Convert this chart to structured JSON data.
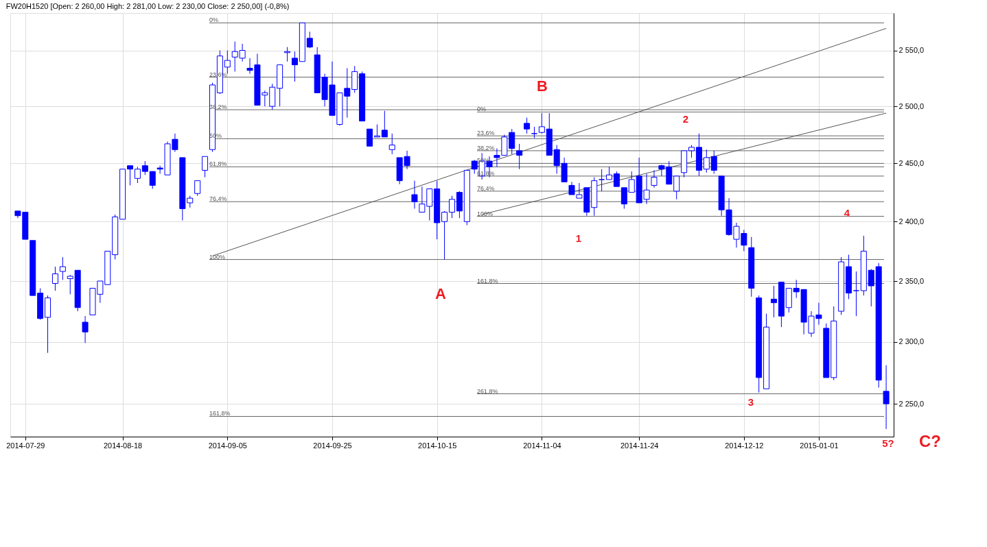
{
  "chart_data": {
    "type": "candlestick",
    "title": "FW20H1520 [Open: 2 260,00  High: 2 281,00  Low: 2 230,00  Close: 2 250,00] (-0,8%)",
    "categories": [
      null,
      "2014-07-29",
      null,
      null,
      null,
      null,
      null,
      null,
      null,
      null,
      null,
      null,
      null,
      null,
      "2014-08-18",
      null,
      null,
      null,
      null,
      null,
      null,
      null,
      null,
      null,
      null,
      null,
      null,
      null,
      "2014-09-05",
      null,
      null,
      null,
      null,
      null,
      null,
      null,
      null,
      null,
      null,
      null,
      null,
      null,
      "2014-09-25",
      null,
      null,
      null,
      null,
      null,
      null,
      null,
      null,
      null,
      null,
      null,
      null,
      null,
      "2014-10-15",
      null,
      null,
      null,
      null,
      null,
      null,
      null,
      null,
      null,
      null,
      null,
      null,
      null,
      "2014-11-04",
      null,
      null,
      null,
      null,
      null,
      null,
      null,
      null,
      null,
      null,
      null,
      null,
      "2014-11-24",
      null,
      null,
      null,
      null,
      null,
      null,
      null,
      null,
      null,
      null,
      null,
      null,
      null,
      "2014-12-12",
      null,
      null,
      null,
      null,
      null,
      null,
      null,
      null,
      null,
      "2015-01-01",
      null,
      null,
      null,
      null,
      null,
      null,
      null,
      null,
      null
    ],
    "ohlc": [
      [
        2409,
        2409,
        2403,
        2405
      ],
      [
        2408,
        2408,
        2385,
        2385
      ],
      [
        2384,
        2384,
        2338,
        2338
      ],
      [
        2340,
        2344,
        2318,
        2319
      ],
      [
        2320,
        2338,
        2291,
        2336
      ],
      [
        2348,
        2362,
        2342,
        2356
      ],
      [
        2358,
        2370,
        2351,
        2362
      ],
      [
        2352,
        2355,
        2339,
        2354
      ],
      [
        2359,
        2359,
        2325,
        2328
      ],
      [
        2316,
        2321,
        2299,
        2308
      ],
      [
        2322,
        2344,
        2322,
        2344
      ],
      [
        2339,
        2350,
        2332,
        2350
      ],
      [
        2347,
        2375,
        2347,
        2375
      ],
      [
        2372,
        2406,
        2368,
        2404
      ],
      [
        2402,
        2445,
        2402,
        2445
      ],
      [
        2448,
        2448,
        2431,
        2445
      ],
      [
        2437,
        2447,
        2433,
        2445
      ],
      [
        2448,
        2452,
        2440,
        2443
      ],
      [
        2443,
        2443,
        2428,
        2431
      ],
      [
        2446,
        2448,
        2441,
        2445
      ],
      [
        2440,
        2469,
        2440,
        2467
      ],
      [
        2471,
        2476,
        2460,
        2462
      ],
      [
        2455,
        2455,
        2401,
        2411
      ],
      [
        2416,
        2422,
        2412,
        2420
      ],
      [
        2424,
        2435,
        2422,
        2435
      ],
      [
        2444,
        2456,
        2438,
        2456
      ],
      [
        2462,
        2521,
        2460,
        2519
      ],
      [
        2512,
        2550,
        2511,
        2545
      ],
      [
        2535,
        2550,
        2529,
        2541
      ],
      [
        2544,
        2558,
        2531,
        2549
      ],
      [
        2543,
        2556,
        2540,
        2550
      ],
      [
        2534,
        2543,
        2529,
        2532
      ],
      [
        2537,
        2547,
        2501,
        2501
      ],
      [
        2510,
        2514,
        2500,
        2512
      ],
      [
        2500,
        2520,
        2497,
        2517
      ],
      [
        2516,
        2537,
        2500,
        2537
      ],
      [
        2548,
        2553,
        2540,
        2549
      ],
      [
        2543,
        2549,
        2522,
        2537
      ],
      [
        2540,
        2575,
        2540,
        2575
      ],
      [
        2561,
        2567,
        2552,
        2553
      ],
      [
        2546,
        2553,
        2512,
        2512
      ],
      [
        2526,
        2529,
        2500,
        2506
      ],
      [
        2519,
        2540,
        2492,
        2492
      ],
      [
        2484,
        2512,
        2483,
        2512
      ],
      [
        2516,
        2534,
        2490,
        2509
      ],
      [
        2515,
        2536,
        2512,
        2531
      ],
      [
        2529,
        2531,
        2487,
        2487
      ],
      [
        2480,
        2480,
        2465,
        2465
      ],
      [
        2473,
        2484,
        2473,
        2474
      ],
      [
        2479,
        2496,
        2473,
        2473
      ],
      [
        2462,
        2476,
        2458,
        2466
      ],
      [
        2455,
        2455,
        2432,
        2435
      ],
      [
        2456,
        2461,
        2445,
        2448
      ],
      [
        2423,
        2435,
        2411,
        2417
      ],
      [
        2408,
        2430,
        2408,
        2415
      ],
      [
        2413,
        2428,
        2401,
        2428
      ],
      [
        2428,
        2435,
        2385,
        2399
      ],
      [
        2400,
        2409,
        2368,
        2408
      ],
      [
        2408,
        2422,
        2403,
        2419
      ],
      [
        2425,
        2426,
        2403,
        2409
      ],
      [
        2400,
        2444,
        2397,
        2444
      ],
      [
        2452,
        2453,
        2441,
        2445
      ],
      [
        2439,
        2459,
        2436,
        2452
      ],
      [
        2452,
        2456,
        2438,
        2447
      ],
      [
        2457,
        2463,
        2447,
        2455
      ],
      [
        2457,
        2475,
        2457,
        2473
      ],
      [
        2477,
        2480,
        2458,
        2463
      ],
      [
        2461,
        2467,
        2445,
        2457
      ],
      [
        2485,
        2490,
        2476,
        2480
      ],
      [
        2476,
        2482,
        2472,
        2476
      ],
      [
        2477,
        2494,
        2476,
        2482
      ],
      [
        2480,
        2494,
        2457,
        2457
      ],
      [
        2462,
        2466,
        2441,
        2448
      ],
      [
        2450,
        2455,
        2434,
        2434
      ],
      [
        2431,
        2434,
        2423,
        2423
      ],
      [
        2420,
        2433,
        2420,
        2423
      ],
      [
        2429,
        2429,
        2405,
        2408
      ],
      [
        2412,
        2438,
        2405,
        2435
      ],
      [
        2436,
        2445,
        2426,
        2436
      ],
      [
        2436,
        2447,
        2436,
        2440
      ],
      [
        2441,
        2443,
        2430,
        2430
      ],
      [
        2429,
        2429,
        2411,
        2415
      ],
      [
        2425,
        2443,
        2425,
        2436
      ],
      [
        2439,
        2455,
        2416,
        2416
      ],
      [
        2419,
        2441,
        2415,
        2427
      ],
      [
        2431,
        2444,
        2429,
        2438
      ],
      [
        2448,
        2449,
        2439,
        2445
      ],
      [
        2447,
        2452,
        2432,
        2432
      ],
      [
        2426,
        2439,
        2419,
        2439
      ],
      [
        2442,
        2461,
        2438,
        2461
      ],
      [
        2461,
        2466,
        2455,
        2464
      ],
      [
        2464,
        2476,
        2439,
        2444
      ],
      [
        2445,
        2462,
        2442,
        2455
      ],
      [
        2456,
        2461,
        2441,
        2444
      ],
      [
        2439,
        2439,
        2405,
        2410
      ],
      [
        2410,
        2420,
        2388,
        2389
      ],
      [
        2385,
        2399,
        2378,
        2396
      ],
      [
        2390,
        2393,
        2375,
        2380
      ],
      [
        2378,
        2387,
        2337,
        2344
      ],
      [
        2336,
        2338,
        2259,
        2271
      ],
      [
        2262,
        2323,
        2262,
        2312
      ],
      [
        2335,
        2346,
        2320,
        2332
      ],
      [
        2349,
        2349,
        2312,
        2321
      ],
      [
        2328,
        2344,
        2324,
        2344
      ],
      [
        2344,
        2351,
        2336,
        2341
      ],
      [
        2343,
        2343,
        2306,
        2316
      ],
      [
        2307,
        2325,
        2304,
        2321
      ],
      [
        2322,
        2332,
        2314,
        2319
      ],
      [
        2311,
        2315,
        2271,
        2271
      ],
      [
        2271,
        2329,
        2269,
        2317
      ],
      [
        2325,
        2370,
        2322,
        2366
      ],
      [
        2362,
        2372,
        2335,
        2340
      ],
      [
        2342,
        2358,
        2321,
        2342
      ],
      [
        2342,
        2388,
        2338,
        2375
      ],
      [
        2359,
        2360,
        2329,
        2346
      ],
      [
        2362,
        2365,
        2263,
        2269
      ],
      [
        2260,
        2281,
        2230,
        2250
      ]
    ],
    "color": "#0000ff",
    "series": [
      {
        "type": "line",
        "color": "#555555",
        "values": [
          null,
          null,
          null,
          null,
          null,
          null,
          null,
          null,
          null,
          null,
          null,
          null,
          null,
          null,
          null,
          null,
          null,
          null,
          null,
          null,
          null,
          null,
          null,
          null,
          null,
          null,
          2371,
          null,
          null,
          null,
          null,
          null,
          null,
          null,
          null,
          null,
          null,
          null,
          null,
          null,
          null,
          null,
          null,
          null,
          null,
          null,
          null,
          null,
          null,
          null,
          null,
          null,
          null,
          null,
          null,
          null,
          null,
          null,
          null,
          null,
          null,
          null,
          null,
          null,
          null,
          null,
          null,
          null,
          null,
          null,
          null,
          null,
          null,
          null,
          null,
          null,
          null,
          null,
          null,
          null,
          null,
          null,
          null,
          null,
          null,
          null,
          null,
          null,
          null,
          null,
          null,
          null,
          null,
          null,
          null,
          null,
          null,
          null,
          null,
          null,
          null,
          null,
          null,
          null,
          null,
          null,
          null,
          null,
          null,
          null,
          null,
          null,
          null,
          null,
          null,
          null,
          2570
        ]
      },
      {
        "type": "line",
        "color": "#555555",
        "values": [
          null,
          null,
          null,
          null,
          null,
          null,
          null,
          null,
          null,
          null,
          null,
          null,
          null,
          null,
          null,
          null,
          null,
          null,
          null,
          null,
          null,
          null,
          null,
          null,
          null,
          null,
          null,
          null,
          null,
          null,
          null,
          null,
          null,
          null,
          null,
          null,
          null,
          null,
          null,
          null,
          null,
          null,
          null,
          null,
          null,
          null,
          null,
          null,
          null,
          null,
          null,
          null,
          null,
          null,
          null,
          null,
          null,
          null,
          null,
          null,
          null,
          null,
          2406,
          null,
          null,
          null,
          null,
          null,
          null,
          null,
          null,
          null,
          null,
          null,
          null,
          null,
          null,
          null,
          null,
          null,
          null,
          null,
          null,
          null,
          null,
          null,
          null,
          null,
          null,
          null,
          null,
          null,
          null,
          null,
          null,
          null,
          null,
          null,
          null,
          null,
          null,
          null,
          null,
          null,
          null,
          null,
          null,
          null,
          null,
          null,
          null,
          null,
          null,
          null,
          null,
          null,
          2494
        ]
      }
    ],
    "ylim": [
      2224,
      2584
    ],
    "yticks": [
      {
        "value": 2250,
        "label": "2 250,0"
      },
      {
        "value": 2300,
        "label": "2 300,0"
      },
      {
        "value": 2350,
        "label": "2 350,0"
      },
      {
        "value": 2400,
        "label": "2 400,0"
      },
      {
        "value": 2450,
        "label": "2 450,0"
      },
      {
        "value": 2500,
        "label": "2 500,0"
      },
      {
        "value": 2550,
        "label": "2 550,0"
      }
    ],
    "log": true,
    "grid": true,
    "ref_lines": [
      {
        "axis": "y",
        "value": 2575,
        "color": "#666666"
      },
      {
        "axis": "y",
        "value": 2526,
        "color": "#666666"
      },
      {
        "axis": "y",
        "value": 2497,
        "color": "#666666"
      },
      {
        "axis": "y",
        "value": 2471.5,
        "color": "#666666"
      },
      {
        "axis": "y",
        "value": 2447,
        "color": "#666666"
      },
      {
        "axis": "y",
        "value": 2417,
        "color": "#666666"
      },
      {
        "axis": "y",
        "value": 2368,
        "color": "#666666"
      },
      {
        "axis": "y",
        "value": 2240,
        "color": "#666666"
      },
      {
        "axis": "y",
        "value": 2495,
        "color": "#666666"
      },
      {
        "axis": "y",
        "value": 2474,
        "color": "#666666"
      },
      {
        "axis": "y",
        "value": 2461,
        "color": "#666666"
      },
      {
        "axis": "y",
        "value": 2450,
        "color": "#666666"
      },
      {
        "axis": "y",
        "value": 2439,
        "color": "#666666"
      },
      {
        "axis": "y",
        "value": 2426,
        "color": "#666666"
      },
      {
        "axis": "y",
        "value": 2404.5,
        "color": "#666666"
      },
      {
        "axis": "y",
        "value": 2348,
        "color": "#666666"
      },
      {
        "axis": "y",
        "value": 2258,
        "color": "#666666"
      }
    ],
    "annotations": [
      "A",
      "B",
      "1",
      "2",
      "3",
      "4",
      "5?",
      "C?",
      {
        "text": "0%",
        "y": 2575
      },
      {
        "text": "23,6%",
        "y": 2526
      },
      {
        "text": "38,2%",
        "y": 2497
      },
      {
        "text": "50%",
        "y": 2471.5
      },
      {
        "text": "61,8%",
        "y": 2447
      },
      {
        "text": "76,4%",
        "y": 2417
      },
      {
        "text": "100%",
        "y": 2368
      },
      {
        "text": "161,8%",
        "y": 2240
      },
      {
        "text": "0%",
        "y": 2495
      },
      {
        "text": "23,6%",
        "y": 2474
      },
      {
        "text": "38,2%",
        "y": 2461
      },
      {
        "text": "50%",
        "y": 2450
      },
      {
        "text": "61,8%",
        "y": 2439
      },
      {
        "text": "76,4%",
        "y": 2426
      },
      {
        "text": "100%",
        "y": 2404.5
      },
      {
        "text": "161,8%",
        "y": 2348
      },
      {
        "text": "261,8%",
        "y": 2258
      }
    ]
  }
}
